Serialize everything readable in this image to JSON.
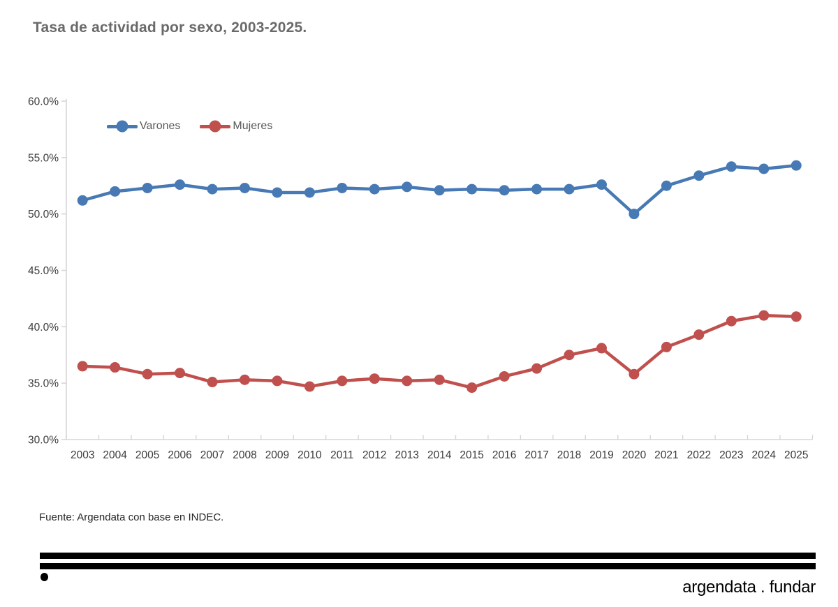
{
  "header": {
    "title": "Tasa de actividad por sexo, 2003-2025."
  },
  "footer": {
    "source": "Fuente: Argendata con base en INDEC."
  },
  "logo": {
    "brand": "argendata . fundar"
  },
  "colors": {
    "varones": "#4779b4",
    "mujeres": "#c0504d",
    "axis_line": "#d6d6d6",
    "title_text": "#6a6a6a",
    "tick_label_text": "#3b3b3b",
    "legend_text": "#595959",
    "background": "#ffffff"
  },
  "chart_data": {
    "type": "line",
    "title": "Tasa de actividad por sexo, 2003-2025.",
    "x": [
      2003,
      2004,
      2005,
      2006,
      2007,
      2008,
      2009,
      2010,
      2011,
      2012,
      2013,
      2014,
      2015,
      2016,
      2017,
      2018,
      2019,
      2020,
      2021,
      2022,
      2023,
      2024,
      2025
    ],
    "series": [
      {
        "name": "Varones",
        "color": "#4779b4",
        "values": [
          51.2,
          52.0,
          52.3,
          52.6,
          52.2,
          52.3,
          51.9,
          51.9,
          52.3,
          52.2,
          52.4,
          52.1,
          52.2,
          52.1,
          52.2,
          52.2,
          52.6,
          50.0,
          52.5,
          53.4,
          54.2,
          54.0,
          54.3
        ]
      },
      {
        "name": "Mujeres",
        "color": "#c0504d",
        "values": [
          36.5,
          36.4,
          35.8,
          35.9,
          35.1,
          35.3,
          35.2,
          34.7,
          35.2,
          35.4,
          35.2,
          35.3,
          34.6,
          35.6,
          36.3,
          37.5,
          38.1,
          35.8,
          38.2,
          39.3,
          40.5,
          41.0,
          40.9
        ]
      }
    ],
    "xlabel": "",
    "ylabel": "",
    "ylim": [
      30,
      60
    ],
    "ytick_step": 5,
    "ytick_labels": [
      "60.0%",
      "55.0%",
      "50.0%",
      "45.0%",
      "40.0%",
      "35.0%",
      "30.0%"
    ],
    "grid": false,
    "legend_position": "top-left-inside",
    "marker": "circle"
  }
}
